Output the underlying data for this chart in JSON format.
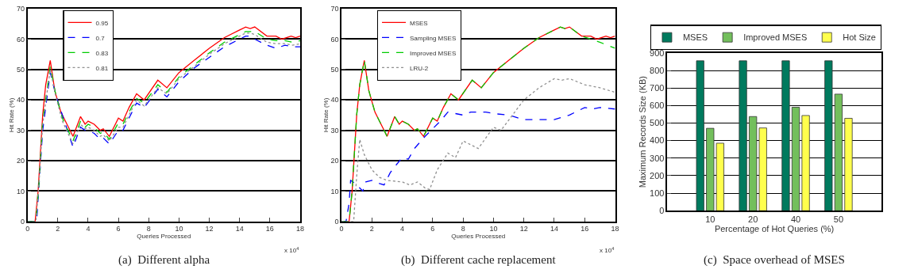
{
  "chart_data": [
    {
      "type": "line",
      "title": "(a)  Different alpha",
      "xlabel": "Queries Processed",
      "ylabel": "Hit Rate (%)",
      "annotations": [
        "x 10$^{4}$"
      ],
      "xlim": [
        0,
        18
      ],
      "xticks": [
        0,
        2,
        4,
        6,
        8,
        10,
        12,
        14,
        16,
        18
      ],
      "ylim": [
        0,
        70
      ],
      "yticks": [
        0,
        10,
        20,
        30,
        40,
        50,
        60,
        70
      ],
      "grid": "y",
      "legend": "top left",
      "marker": "none",
      "series": [
        {
          "name": "0.95",
          "color": "#ff0000",
          "line_style": "solid",
          "x": [
            0,
            0.5,
            0.7,
            1,
            1.2,
            1.5,
            1.8,
            2.2,
            3,
            3.5,
            3.8,
            4,
            4.4,
            4.8,
            5,
            5.4,
            6,
            6.3,
            6.7,
            7.2,
            7.7,
            8.6,
            9.2,
            10,
            11,
            12,
            13,
            14,
            14.4,
            14.7,
            15,
            15.8,
            16.4,
            16.8,
            17.4,
            17.7,
            18
          ],
          "values": [
            0,
            0,
            10,
            35,
            45,
            53,
            43,
            36,
            28,
            34.5,
            32,
            33,
            32,
            30,
            30.5,
            28,
            34,
            33,
            37.5,
            42,
            40,
            46.5,
            44,
            49,
            53,
            57,
            60.5,
            63,
            64,
            63.5,
            64,
            61,
            61,
            60,
            61,
            60.5,
            61
          ]
        },
        {
          "name": "0.7",
          "color": "#0000ff",
          "line_style": "dashed",
          "x": [
            0,
            0.6,
            0.8,
            1,
            1.5,
            1.9,
            2.5,
            3,
            3.5,
            3.8,
            4,
            4.4,
            4.8,
            5,
            5.4,
            6,
            6.3,
            6.7,
            7.2,
            7.7,
            8.6,
            9.2,
            10,
            11,
            12,
            13,
            14,
            14.4,
            14.7,
            15,
            15.8,
            16.4,
            17,
            17.5,
            18
          ],
          "values": [
            0,
            0,
            15,
            30,
            49,
            41,
            32,
            24.5,
            31,
            30,
            30,
            29,
            27,
            27.5,
            25.5,
            30,
            30,
            34,
            39,
            37.5,
            43.5,
            41,
            46,
            50.5,
            54,
            57.5,
            60,
            61,
            61,
            60,
            58,
            57,
            58,
            57.5,
            57.5
          ]
        },
        {
          "name": "0.83",
          "color": "#00cc00",
          "line_style": "dashed",
          "x": [
            0,
            0.55,
            0.75,
            1,
            1.5,
            1.85,
            2.3,
            3,
            3.5,
            3.8,
            4,
            4.4,
            4.8,
            5,
            5.4,
            6,
            6.3,
            6.7,
            7.2,
            7.7,
            8.6,
            9.2,
            10,
            11,
            12,
            13,
            14,
            14.4,
            14.7,
            15,
            15.8,
            16.4,
            17,
            17.5,
            18
          ],
          "values": [
            0,
            0,
            12,
            33,
            51,
            42,
            34,
            26.5,
            33,
            31,
            32,
            31,
            29,
            29.5,
            27,
            32.5,
            32,
            36,
            40.5,
            39,
            45,
            42.5,
            47.5,
            51.5,
            55.5,
            59,
            61.5,
            62.5,
            62.5,
            62.5,
            60,
            59.5,
            59.5,
            59,
            59.5
          ]
        },
        {
          "name": "0.81",
          "color": "#909090",
          "line_style": "dotted",
          "x": [
            0,
            0.55,
            0.75,
            1,
            1.5,
            1.85,
            2.3,
            3,
            3.5,
            3.8,
            4,
            4.4,
            4.8,
            5,
            5.4,
            6,
            6.3,
            6.7,
            7.2,
            7.7,
            8.6,
            9.2,
            10,
            11,
            12,
            13,
            14,
            14.4,
            14.7,
            15,
            15.8,
            16.4,
            17,
            17.5,
            18
          ],
          "values": [
            0,
            0,
            12,
            32,
            50,
            41.5,
            33,
            25.5,
            32,
            30.5,
            31,
            30,
            28,
            28.5,
            26.5,
            31,
            31,
            35,
            40,
            38,
            44,
            42,
            47,
            51,
            55,
            58.5,
            61,
            62,
            62,
            61.5,
            59,
            58.5,
            58.5,
            58,
            58.5
          ]
        }
      ]
    },
    {
      "type": "line",
      "title": "(b)  Different cache replacement",
      "xlabel": "Queries Processed",
      "ylabel": "Hit Rate (%)",
      "annotations": [
        "x 10$^{4}$"
      ],
      "xlim": [
        0,
        18
      ],
      "xticks": [
        0,
        2,
        4,
        6,
        8,
        10,
        12,
        14,
        16,
        18
      ],
      "ylim": [
        0,
        70
      ],
      "yticks": [
        0,
        10,
        20,
        30,
        40,
        50,
        60,
        70
      ],
      "grid": "y",
      "legend": "top left",
      "marker": "none",
      "series": [
        {
          "name": "MSES",
          "color": "#ff0000",
          "line_style": "solid",
          "x": [
            0,
            0.5,
            0.7,
            1,
            1.2,
            1.5,
            1.8,
            2.2,
            3,
            3.5,
            3.8,
            4,
            4.4,
            4.8,
            5,
            5.4,
            6,
            6.3,
            6.7,
            7.2,
            7.7,
            8.6,
            9.2,
            10,
            11,
            12,
            13,
            14,
            14.4,
            14.7,
            15,
            15.8,
            16.4,
            16.8,
            17.4,
            17.7,
            18
          ],
          "values": [
            0,
            0,
            10,
            35,
            45,
            53,
            43,
            36,
            28,
            34.5,
            32,
            33,
            32,
            30,
            30.5,
            28,
            34,
            33,
            37.5,
            42,
            40,
            46.5,
            44,
            49,
            53,
            57,
            60.5,
            63,
            64,
            63.5,
            64,
            61,
            61,
            60,
            61,
            60.5,
            61
          ]
        },
        {
          "name": "Sampling MSES",
          "color": "#0000ff",
          "line_style": "dashed",
          "x": [
            0,
            0.3,
            0.5,
            0.6,
            0.9,
            1.2,
            1.4,
            1.6,
            2,
            2.5,
            2.8,
            3.2,
            3.5,
            4,
            4.4,
            4.8,
            5.5,
            6,
            6.5,
            7,
            7.5,
            8,
            8.5,
            9,
            9.5,
            10,
            11,
            12,
            13,
            14,
            15,
            16,
            16.5,
            17,
            18
          ],
          "values": [
            0,
            0,
            6,
            13.5,
            12.5,
            11,
            10,
            13,
            13.5,
            12.5,
            12,
            16,
            18,
            21,
            20.5,
            24,
            28,
            30.5,
            33,
            36,
            35.5,
            35,
            36,
            36,
            36,
            35.5,
            35,
            33.5,
            33.5,
            33.5,
            35,
            37.5,
            37,
            37.5,
            37
          ]
        },
        {
          "name": "Improved MSES",
          "color": "#00cc00",
          "line_style": "dashed",
          "x": [
            0,
            0.5,
            0.7,
            1,
            1.2,
            1.5,
            1.8,
            2.2,
            3,
            3.5,
            3.8,
            4,
            4.4,
            4.8,
            5,
            5.4,
            6,
            6.3,
            6.7,
            7.2,
            7.7,
            8.6,
            9.2,
            10,
            11,
            12,
            13,
            14,
            14.4,
            14.7,
            15,
            15.8,
            16.4,
            17,
            18
          ],
          "values": [
            0,
            0,
            10,
            35,
            45,
            53,
            43,
            36,
            28,
            34.5,
            32,
            33,
            32,
            30,
            30.5,
            28,
            34,
            33,
            37.5,
            42,
            40,
            46.5,
            44,
            49,
            53,
            57,
            60.5,
            63,
            64,
            63.5,
            64,
            61,
            60,
            59,
            57
          ]
        },
        {
          "name": "LRU-2",
          "color": "#909090",
          "line_style": "dotted",
          "x": [
            0,
            0.8,
            1,
            1.2,
            1.5,
            2,
            2.5,
            3,
            4,
            4.5,
            5,
            5.5,
            5.8,
            6.3,
            7,
            7.5,
            8,
            9,
            10,
            10.5,
            12,
            13,
            14,
            14.5,
            15,
            16,
            17,
            18
          ],
          "values": [
            0,
            0,
            15,
            27,
            22,
            17,
            14.5,
            13.5,
            13,
            12,
            13,
            11,
            10.5,
            17,
            22.5,
            21,
            26.5,
            24,
            31,
            30,
            40,
            44,
            47,
            46.5,
            47,
            45,
            44,
            42.5
          ]
        }
      ]
    },
    {
      "type": "bar",
      "title": "(c)  Space overhead of MSES",
      "xlabel": "Percentage of Hot Queries (%)",
      "ylabel": "Maximum Records Size (KB)",
      "categories": [
        "10",
        "20",
        "40",
        "50"
      ],
      "ylim": [
        0,
        900
      ],
      "yticks": [
        0,
        100,
        200,
        300,
        400,
        500,
        600,
        700,
        800,
        900
      ],
      "grid": "y",
      "legend": "top right",
      "series": [
        {
          "name": "MSES",
          "color": "#007a5e",
          "values": [
            855,
            855,
            855,
            855
          ]
        },
        {
          "name": "Improved MSES",
          "color": "#73bf5c",
          "values": [
            470,
            537,
            590,
            665
          ]
        },
        {
          "name": "Hot Size",
          "color": "#ffff4d",
          "values": [
            385,
            472,
            543,
            527
          ]
        }
      ]
    }
  ]
}
